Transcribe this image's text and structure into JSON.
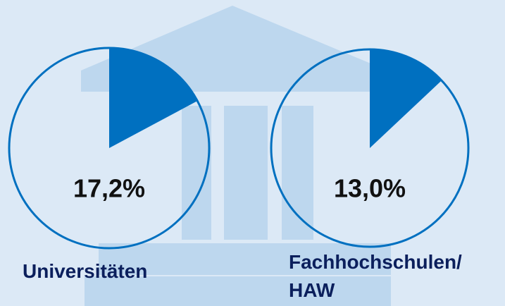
{
  "chart_data": [
    {
      "type": "pie",
      "categories": [
        "Universitäten"
      ],
      "values": [
        17.2
      ],
      "value_labels": [
        "17,2%"
      ],
      "color": "#0070c0"
    },
    {
      "type": "pie",
      "categories": [
        "Fachhochschulen/ HAW"
      ],
      "values": [
        13.0
      ],
      "value_labels": [
        "13,0%"
      ],
      "color": "#0070c0"
    }
  ]
}
